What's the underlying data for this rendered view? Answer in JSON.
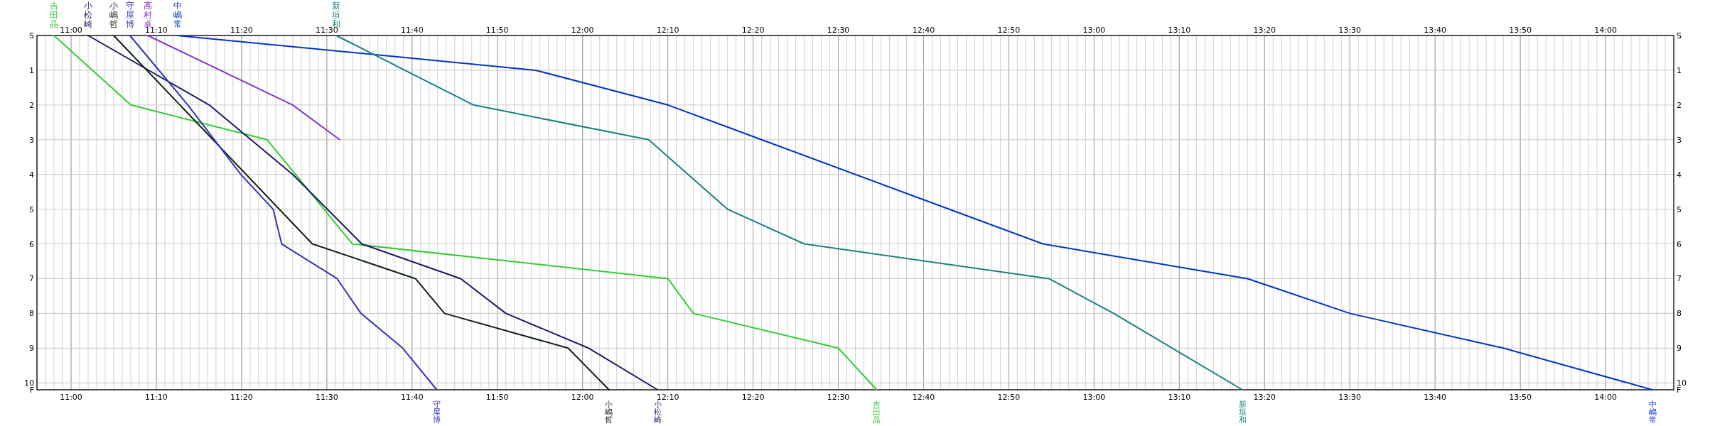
{
  "chart_data": {
    "type": "line",
    "xlim": [
      10.9333,
      14.1333
    ],
    "xticks": [
      {
        "value": 11,
        "label": "11:00"
      },
      {
        "value": 11.1667,
        "label": "11:10"
      },
      {
        "value": 11.3333,
        "label": "11:20"
      },
      {
        "value": 11.5,
        "label": "11:30"
      },
      {
        "value": 11.6667,
        "label": "11:40"
      },
      {
        "value": 11.8333,
        "label": "11:50"
      },
      {
        "value": 12,
        "label": "12:00"
      },
      {
        "value": 12.1667,
        "label": "12:10"
      },
      {
        "value": 12.3333,
        "label": "12:20"
      },
      {
        "value": 12.5,
        "label": "12:30"
      },
      {
        "value": 12.6667,
        "label": "12:40"
      },
      {
        "value": 12.8333,
        "label": "12:50"
      },
      {
        "value": 13,
        "label": "13:00"
      },
      {
        "value": 13.1667,
        "label": "13:10"
      },
      {
        "value": 13.3333,
        "label": "13:20"
      },
      {
        "value": 13.5,
        "label": "13:30"
      },
      {
        "value": 13.6667,
        "label": "13:40"
      },
      {
        "value": 13.8333,
        "label": "13:50"
      },
      {
        "value": 14,
        "label": "14:00"
      }
    ],
    "x2lim": [
      10.9333,
      14.1333
    ],
    "x2ticks": [
      {
        "value": 11,
        "label": "11:00"
      },
      {
        "value": 11.1667,
        "label": "11:10"
      },
      {
        "value": 11.3333,
        "label": "11:20"
      },
      {
        "value": 11.5,
        "label": "11:30"
      },
      {
        "value": 11.6667,
        "label": "11:40"
      },
      {
        "value": 11.8333,
        "label": "11:50"
      },
      {
        "value": 12,
        "label": "12:00"
      },
      {
        "value": 12.1667,
        "label": "12:10"
      },
      {
        "value": 12.3333,
        "label": "12:20"
      },
      {
        "value": 12.5,
        "label": "12:30"
      },
      {
        "value": 12.6667,
        "label": "12:40"
      },
      {
        "value": 12.8333,
        "label": "12:50"
      },
      {
        "value": 13,
        "label": "13:00"
      },
      {
        "value": 13.1667,
        "label": "13:10"
      },
      {
        "value": 13.3333,
        "label": "13:20"
      },
      {
        "value": 13.5,
        "label": "13:30"
      },
      {
        "value": 13.6667,
        "label": "13:40"
      },
      {
        "value": 13.8333,
        "label": "13:50"
      },
      {
        "value": 14,
        "label": "14:00"
      }
    ],
    "ylim": [
      10.2,
      0
    ],
    "yticks": [
      {
        "value": 0,
        "label": "S"
      },
      1,
      2,
      3,
      4,
      5,
      6,
      7,
      8,
      9,
      10,
      {
        "value": 10.2,
        "label": "F"
      }
    ],
    "y2lim": [
      10.2,
      0
    ],
    "y2ticks": [
      {
        "value": 0,
        "label": "S"
      },
      1,
      2,
      3,
      4,
      5,
      6,
      7,
      8,
      9,
      10,
      {
        "value": 10.2,
        "label": "F"
      }
    ],
    "grid": true,
    "legend": false,
    "marker": "none",
    "line_style": "solid",
    "series": [
      {
        "name": "吉田晶",
        "color": "#33cc33",
        "x": [
          10.9667,
          11.1167,
          11.3833,
          11.55,
          12.1667,
          12.2167,
          12.5,
          12.575
        ],
        "values": [
          0,
          2,
          3,
          6,
          7,
          8,
          9,
          10.2
        ]
      },
      {
        "name": "小松崎",
        "color": "#1a1a66",
        "x": [
          11.0333,
          11.27,
          11.4333,
          11.5683,
          11.7617,
          11.85,
          12.0117,
          12.1467
        ],
        "values": [
          0,
          2,
          4,
          6,
          7,
          8,
          9,
          10.2
        ]
      },
      {
        "name": "小嶋哲",
        "color": "#112211",
        "x": [
          11.0833,
          11.4717,
          11.6733,
          11.73,
          11.9717,
          12.0517
        ],
        "values": [
          0,
          6,
          7,
          8,
          9,
          10.2
        ]
      },
      {
        "name": "守屋博",
        "color": "#3333bb",
        "x": [
          11.115,
          11.2283,
          11.3317,
          11.395,
          11.4117,
          11.52,
          11.5667,
          11.6483,
          11.715
        ],
        "values": [
          0,
          2,
          4,
          5,
          6,
          7,
          8,
          9,
          10.2
        ]
      },
      {
        "name": "高村卓",
        "color": "#8833cc",
        "x": [
          11.15,
          11.4333,
          11.525
        ],
        "values": [
          0,
          2,
          3
        ]
      },
      {
        "name": "中嶋常",
        "color": "#0033cc",
        "x": [
          11.2083,
          11.9083,
          12.1667,
          12.35,
          12.9,
          13.3,
          13.5,
          13.8,
          14.0917
        ],
        "values": [
          0,
          1,
          2,
          3,
          6,
          7,
          8,
          9,
          10.2
        ]
      },
      {
        "name": "新垣和",
        "color": "#1a8080",
        "x": [
          11.5183,
          11.7867,
          12.1292,
          12.2833,
          12.4333,
          12.9117,
          13.0383,
          13.29
        ],
        "values": [
          0,
          2,
          3,
          5,
          6,
          7,
          8,
          10.2
        ]
      }
    ]
  }
}
